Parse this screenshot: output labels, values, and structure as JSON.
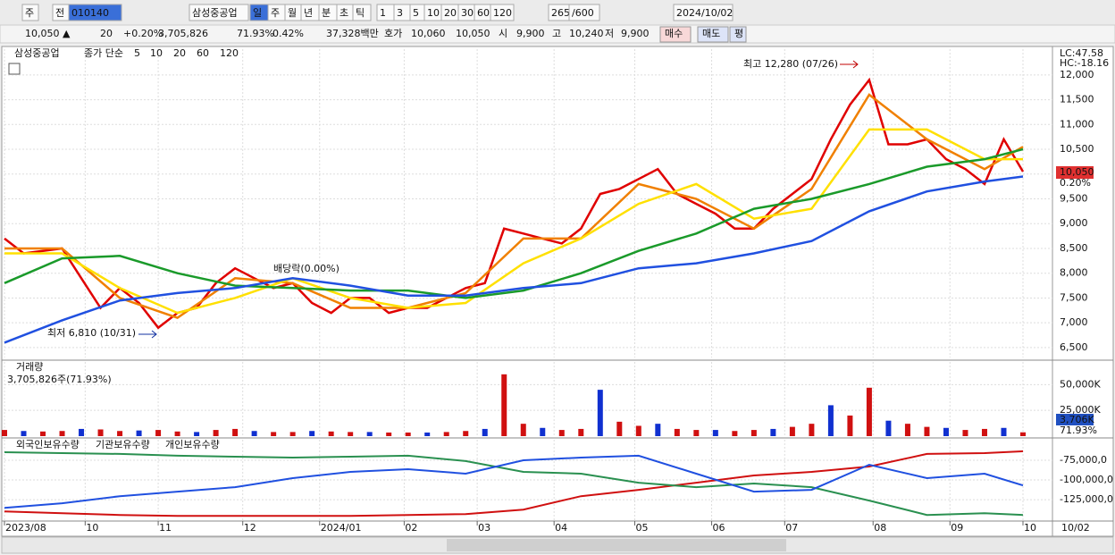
{
  "toolbar": {
    "items": [
      "주",
      "전",
      "010140",
      "삼성중공업",
      "일",
      "주",
      "월",
      "년",
      "분",
      "초",
      "틱",
      "1",
      "3",
      "5",
      "10",
      "20",
      "30",
      "60",
      "120",
      "265",
      "/600",
      "2024/10/02"
    ]
  },
  "info_bar": {
    "items": [
      "10,050 ▲",
      "20",
      "+0.20%",
      "3,705,826",
      "71.93%",
      "0.42%",
      "37,328백만",
      "호가",
      "10,060",
      "10,050",
      "시",
      "9,900",
      "고",
      "10,240",
      "저",
      "9,900",
      "매수",
      "매도",
      "평"
    ]
  },
  "chart_data": [
    {
      "type": "line",
      "title": "삼성중공업",
      "subtitle": "종가 단순",
      "xlim": [
        0,
        265
      ],
      "xticks": [
        {
          "value": 0,
          "label": "2023/08"
        },
        {
          "value": 21,
          "label": "10"
        },
        {
          "value": 40,
          "label": "11"
        },
        {
          "value": 62,
          "label": "12"
        },
        {
          "value": 82,
          "label": "2024/01"
        },
        {
          "value": 104,
          "label": "02"
        },
        {
          "value": 123,
          "label": "03"
        },
        {
          "value": 143,
          "label": "04"
        },
        {
          "value": 164,
          "label": "05"
        },
        {
          "value": 184,
          "label": "06"
        },
        {
          "value": 203,
          "label": "07"
        },
        {
          "value": 226,
          "label": "08"
        },
        {
          "value": 246,
          "label": "09"
        },
        {
          "value": 265,
          "label": "10"
        }
      ],
      "x_end_label": "10/02",
      "ylim": [
        6300,
        12520
      ],
      "yticks": [
        {
          "value": 6500,
          "label": "6,500"
        },
        {
          "value": 7000,
          "label": "7,000"
        },
        {
          "value": 7500,
          "label": "7,500"
        },
        {
          "value": 8000,
          "label": "8,000"
        },
        {
          "value": 8500,
          "label": "8,500"
        },
        {
          "value": 9000,
          "label": "9,000"
        },
        {
          "value": 9500,
          "label": "9,500"
        },
        {
          "value": 10000,
          "label": "10,000"
        },
        {
          "value": 10500,
          "label": "10,500"
        },
        {
          "value": 11000,
          "label": "11,000"
        },
        {
          "value": 11500,
          "label": "11,500"
        },
        {
          "value": 12000,
          "label": "12,000"
        }
      ],
      "grid": true,
      "series": [
        {
          "name": "5",
          "color": "#e00000",
          "x": [
            0,
            5,
            10,
            15,
            20,
            25,
            30,
            35,
            40,
            45,
            50,
            55,
            60,
            65,
            70,
            75,
            80,
            85,
            90,
            95,
            100,
            105,
            110,
            115,
            120,
            125,
            130,
            135,
            140,
            145,
            150,
            155,
            160,
            165,
            170,
            175,
            180,
            185,
            190,
            195,
            200,
            205,
            210,
            215,
            220,
            225,
            230,
            235,
            240,
            245,
            250,
            255,
            260,
            265
          ],
          "values": [
            8700,
            8400,
            8450,
            8500,
            7900,
            7300,
            7700,
            7400,
            6900,
            7200,
            7300,
            7800,
            8100,
            7900,
            7700,
            7800,
            7400,
            7200,
            7500,
            7500,
            7200,
            7300,
            7300,
            7500,
            7700,
            7800,
            8900,
            8800,
            8700,
            8600,
            8900,
            9600,
            9700,
            9900,
            10100,
            9600,
            9400,
            9200,
            8900,
            8900,
            9300,
            9600,
            9900,
            10700,
            11400,
            11900,
            10600,
            10600,
            10700,
            10300,
            10100,
            9800,
            10700,
            10050
          ]
        },
        {
          "name": "10",
          "color": "#f08000",
          "x": [
            0,
            15,
            30,
            45,
            60,
            75,
            90,
            105,
            120,
            135,
            150,
            165,
            180,
            195,
            210,
            225,
            240,
            255,
            265
          ],
          "values": [
            8500,
            8500,
            7500,
            7100,
            7900,
            7800,
            7300,
            7300,
            7600,
            8700,
            8700,
            9800,
            9500,
            8900,
            9700,
            11600,
            10700,
            10100,
            10550
          ]
        },
        {
          "name": "20",
          "color": "#ffe000",
          "x": [
            0,
            15,
            30,
            45,
            60,
            75,
            90,
            105,
            120,
            135,
            150,
            165,
            180,
            195,
            210,
            225,
            240,
            255,
            265
          ],
          "values": [
            8400,
            8400,
            7700,
            7200,
            7500,
            7900,
            7500,
            7300,
            7400,
            8200,
            8700,
            9400,
            9800,
            9100,
            9300,
            10900,
            10900,
            10300,
            10300
          ]
        },
        {
          "name": "60",
          "color": "#1a9a2a",
          "x": [
            0,
            15,
            30,
            45,
            60,
            75,
            90,
            105,
            120,
            135,
            150,
            165,
            180,
            195,
            210,
            225,
            240,
            255,
            265
          ],
          "values": [
            7800,
            8300,
            8350,
            8000,
            7750,
            7700,
            7650,
            7650,
            7500,
            7650,
            8000,
            8450,
            8800,
            9300,
            9500,
            9800,
            10150,
            10300,
            10500
          ]
        },
        {
          "name": "120",
          "color": "#2050e0",
          "x": [
            0,
            15,
            30,
            45,
            60,
            75,
            90,
            105,
            120,
            135,
            150,
            165,
            180,
            195,
            210,
            225,
            240,
            255,
            265
          ],
          "values": [
            6600,
            7050,
            7450,
            7600,
            7700,
            7900,
            7750,
            7550,
            7550,
            7700,
            7800,
            8100,
            8200,
            8400,
            8650,
            9250,
            9650,
            9850,
            9950
          ]
        }
      ],
      "annotations": [
        "최고 12,280 (07/26)",
        "최저 6,810 (10/31)",
        "배당락(0.00%)"
      ],
      "labels": [
        "LC:47.58",
        "HC:-18.16",
        "10,050",
        "0.20%"
      ]
    },
    {
      "type": "bar",
      "title": "거래량",
      "subtitle": "3,705,826주(71.93%)",
      "xlim": [
        0,
        265
      ],
      "ylim": [
        0,
        72000
      ],
      "yticks": [
        {
          "value": 25000,
          "label": "25,000K"
        },
        {
          "value": 50000,
          "label": "50,000K"
        }
      ],
      "color_up": "#d01010",
      "color_down": "#1030d0",
      "x": [
        0,
        5,
        10,
        15,
        20,
        25,
        30,
        35,
        40,
        45,
        50,
        55,
        60,
        65,
        70,
        75,
        80,
        85,
        90,
        95,
        100,
        105,
        110,
        115,
        120,
        125,
        130,
        135,
        140,
        145,
        150,
        155,
        160,
        165,
        170,
        175,
        180,
        185,
        190,
        195,
        200,
        205,
        210,
        215,
        220,
        225,
        230,
        235,
        240,
        245,
        250,
        255,
        260,
        265
      ],
      "values": [
        6000,
        5000,
        4500,
        5000,
        7000,
        6500,
        5000,
        5500,
        6000,
        4500,
        4000,
        6000,
        7000,
        5000,
        4000,
        4000,
        5000,
        4500,
        4000,
        4000,
        3500,
        3500,
        3500,
        4000,
        5000,
        7000,
        60000,
        12000,
        8000,
        6000,
        7000,
        45000,
        14000,
        10000,
        12000,
        7000,
        6000,
        6000,
        5000,
        6000,
        7000,
        9000,
        12000,
        30000,
        20000,
        47000,
        15000,
        12000,
        9000,
        8000,
        6000,
        7000,
        8000,
        3706
      ],
      "labels": [
        "3,706K",
        "71.93%"
      ]
    },
    {
      "type": "line",
      "xlim": [
        0,
        265
      ],
      "ylim": [
        -152000,
        -49000
      ],
      "yticks": [
        {
          "value": -75000,
          "label": "-75,000,0"
        },
        {
          "value": -100000,
          "label": "-100,000,0"
        },
        {
          "value": -125000,
          "label": "-125,000,0"
        }
      ],
      "series": [
        {
          "name": "외국인보유수량",
          "color": "#d01010",
          "x": [
            0,
            15,
            30,
            45,
            60,
            75,
            90,
            105,
            120,
            135,
            150,
            165,
            180,
            195,
            210,
            225,
            240,
            255,
            265
          ],
          "values": [
            -139800,
            -142000,
            -144300,
            -145500,
            -145500,
            -145500,
            -145500,
            -144300,
            -143200,
            -137500,
            -120500,
            -112500,
            -103400,
            -94300,
            -89800,
            -83000,
            -67000,
            -66000,
            -63600
          ]
        },
        {
          "name": "기관보유수량",
          "color": "#2a9050",
          "x": [
            0,
            15,
            30,
            45,
            60,
            75,
            90,
            105,
            120,
            135,
            150,
            165,
            180,
            195,
            210,
            225,
            240,
            255,
            265
          ],
          "values": [
            -64800,
            -66000,
            -67000,
            -69300,
            -70500,
            -71600,
            -70500,
            -69300,
            -76100,
            -89800,
            -92000,
            -103400,
            -109100,
            -104500,
            -109100,
            -126100,
            -144300,
            -142000,
            -144300
          ]
        },
        {
          "name": "개인보유수량",
          "color": "#2050e0",
          "x": [
            0,
            15,
            30,
            45,
            60,
            75,
            90,
            105,
            120,
            135,
            150,
            165,
            180,
            195,
            210,
            225,
            240,
            255,
            265
          ],
          "values": [
            -135200,
            -129500,
            -120500,
            -114800,
            -109100,
            -97700,
            -89800,
            -86400,
            -92000,
            -75000,
            -71600,
            -69300,
            -92000,
            -114800,
            -112500,
            -80700,
            -97700,
            -92000,
            -106800
          ]
        }
      ]
    }
  ]
}
